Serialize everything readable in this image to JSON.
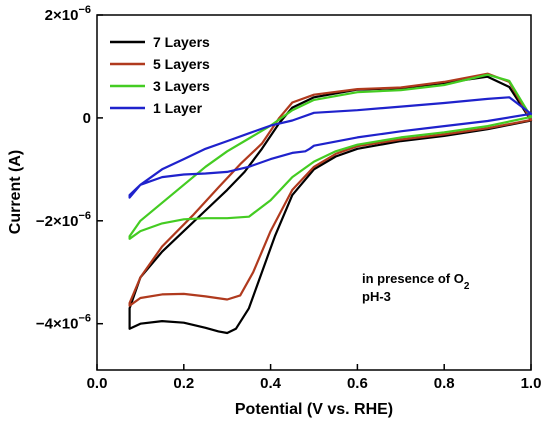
{
  "chart_data": {
    "type": "line",
    "xlabel": "Potential (V vs. RHE)",
    "ylabel": "Current (A)",
    "xlim": [
      0.0,
      1.0
    ],
    "ylim": [
      -4.9e-06,
      2e-06
    ],
    "x_ticks": [
      {
        "value": 0.0,
        "label": "0.0"
      },
      {
        "value": 0.2,
        "label": "0.2"
      },
      {
        "value": 0.4,
        "label": "0.4"
      },
      {
        "value": 0.6,
        "label": "0.6"
      },
      {
        "value": 0.8,
        "label": "0.8"
      },
      {
        "value": 1.0,
        "label": "1.0"
      }
    ],
    "y_ticks": [
      {
        "value": 2e-06,
        "mant": "2×10",
        "exp": "−6"
      },
      {
        "value": 0,
        "mant": "0",
        "exp": ""
      },
      {
        "value": -2e-06,
        "mant": "−2×10",
        "exp": "−6"
      },
      {
        "value": -4e-06,
        "mant": "−4×10",
        "exp": "−6"
      }
    ],
    "legend_position": "top-left",
    "annotation": {
      "line1_main": "in presence of O",
      "line1_sub": "2",
      "line2": "pH-3"
    },
    "series": [
      {
        "name": "7 Layers",
        "color": "#000000",
        "points": [
          [
            0.075,
            -4.1e-06
          ],
          [
            0.1,
            -4e-06
          ],
          [
            0.15,
            -3.95e-06
          ],
          [
            0.2,
            -3.98e-06
          ],
          [
            0.25,
            -4.08e-06
          ],
          [
            0.28,
            -4.15e-06
          ],
          [
            0.3,
            -4.18e-06
          ],
          [
            0.32,
            -4.1e-06
          ],
          [
            0.35,
            -3.7e-06
          ],
          [
            0.38,
            -3e-06
          ],
          [
            0.41,
            -2.3e-06
          ],
          [
            0.45,
            -1.5e-06
          ],
          [
            0.5,
            -1e-06
          ],
          [
            0.55,
            -7.5e-07
          ],
          [
            0.6,
            -6e-07
          ],
          [
            0.7,
            -4.5e-07
          ],
          [
            0.8,
            -3.5e-07
          ],
          [
            0.9,
            -2.2e-07
          ],
          [
            1.0,
            -5e-08
          ],
          [
            0.95,
            6e-07
          ],
          [
            0.9,
            8e-07
          ],
          [
            0.8,
            6.8e-07
          ],
          [
            0.7,
            5.8e-07
          ],
          [
            0.6,
            5.5e-07
          ],
          [
            0.5,
            4e-07
          ],
          [
            0.45,
            2e-07
          ],
          [
            0.42,
            -1e-07
          ],
          [
            0.38,
            -6e-07
          ],
          [
            0.34,
            -1.05e-06
          ],
          [
            0.3,
            -1.4e-06
          ],
          [
            0.25,
            -1.8e-06
          ],
          [
            0.2,
            -2.2e-06
          ],
          [
            0.15,
            -2.6e-06
          ],
          [
            0.1,
            -3.1e-06
          ],
          [
            0.075,
            -3.7e-06
          ]
        ]
      },
      {
        "name": "5 Layers",
        "color": "#b03a1e",
        "points": [
          [
            0.075,
            -3.65e-06
          ],
          [
            0.1,
            -3.5e-06
          ],
          [
            0.15,
            -3.43e-06
          ],
          [
            0.2,
            -3.42e-06
          ],
          [
            0.25,
            -3.47e-06
          ],
          [
            0.3,
            -3.53e-06
          ],
          [
            0.33,
            -3.45e-06
          ],
          [
            0.36,
            -3e-06
          ],
          [
            0.4,
            -2.2e-06
          ],
          [
            0.45,
            -1.4e-06
          ],
          [
            0.5,
            -9.5e-07
          ],
          [
            0.55,
            -7e-07
          ],
          [
            0.6,
            -5.5e-07
          ],
          [
            0.7,
            -4.2e-07
          ],
          [
            0.8,
            -3.2e-07
          ],
          [
            0.9,
            -2e-07
          ],
          [
            1.0,
            -4e-08
          ],
          [
            0.95,
            7e-07
          ],
          [
            0.9,
            8.6e-07
          ],
          [
            0.8,
            7e-07
          ],
          [
            0.7,
            5.9e-07
          ],
          [
            0.6,
            5.6e-07
          ],
          [
            0.5,
            4.5e-07
          ],
          [
            0.45,
            3e-07
          ],
          [
            0.42,
            0.0
          ],
          [
            0.38,
            -5e-07
          ],
          [
            0.33,
            -9e-07
          ],
          [
            0.28,
            -1.35e-06
          ],
          [
            0.22,
            -1.9e-06
          ],
          [
            0.15,
            -2.5e-06
          ],
          [
            0.1,
            -3.1e-06
          ],
          [
            0.075,
            -3.6e-06
          ]
        ]
      },
      {
        "name": "3 Layers",
        "color": "#44cc22",
        "points": [
          [
            0.075,
            -2.35e-06
          ],
          [
            0.1,
            -2.2e-06
          ],
          [
            0.15,
            -2.05e-06
          ],
          [
            0.2,
            -1.97e-06
          ],
          [
            0.25,
            -1.95e-06
          ],
          [
            0.3,
            -1.95e-06
          ],
          [
            0.35,
            -1.92e-06
          ],
          [
            0.4,
            -1.6e-06
          ],
          [
            0.45,
            -1.15e-06
          ],
          [
            0.5,
            -8.5e-07
          ],
          [
            0.55,
            -6.5e-07
          ],
          [
            0.6,
            -5.2e-07
          ],
          [
            0.7,
            -3.8e-07
          ],
          [
            0.8,
            -2.8e-07
          ],
          [
            0.9,
            -1.6e-07
          ],
          [
            1.0,
            2e-08
          ],
          [
            0.95,
            7.2e-07
          ],
          [
            0.9,
            8.4e-07
          ],
          [
            0.8,
            6.4e-07
          ],
          [
            0.7,
            5.4e-07
          ],
          [
            0.6,
            5e-07
          ],
          [
            0.5,
            3.5e-07
          ],
          [
            0.45,
            1.5e-07
          ],
          [
            0.4,
            -1.5e-07
          ],
          [
            0.35,
            -4e-07
          ],
          [
            0.3,
            -6.5e-07
          ],
          [
            0.25,
            -9.5e-07
          ],
          [
            0.2,
            -1.3e-06
          ],
          [
            0.15,
            -1.65e-06
          ],
          [
            0.1,
            -2e-06
          ],
          [
            0.075,
            -2.3e-06
          ]
        ]
      },
      {
        "name": "1 Layer",
        "color": "#1f22cc",
        "points": [
          [
            0.075,
            -1.55e-06
          ],
          [
            0.1,
            -1.3e-06
          ],
          [
            0.15,
            -1.15e-06
          ],
          [
            0.2,
            -1.1e-06
          ],
          [
            0.25,
            -1.08e-06
          ],
          [
            0.3,
            -1.05e-06
          ],
          [
            0.35,
            -9.5e-07
          ],
          [
            0.4,
            -8e-07
          ],
          [
            0.45,
            -6.8e-07
          ],
          [
            0.48,
            -6.5e-07
          ],
          [
            0.49,
            -6e-07
          ],
          [
            0.5,
            -5.4e-07
          ],
          [
            0.55,
            -4.6e-07
          ],
          [
            0.6,
            -3.8e-07
          ],
          [
            0.7,
            -2.6e-07
          ],
          [
            0.8,
            -1.6e-07
          ],
          [
            0.9,
            -6e-08
          ],
          [
            1.0,
            8e-08
          ],
          [
            0.95,
            4e-07
          ],
          [
            0.9,
            3.7e-07
          ],
          [
            0.8,
            2.9e-07
          ],
          [
            0.7,
            2.2e-07
          ],
          [
            0.6,
            1.5e-07
          ],
          [
            0.5,
            1e-07
          ],
          [
            0.45,
            -5e-08
          ],
          [
            0.4,
            -1.5e-07
          ],
          [
            0.35,
            -3e-07
          ],
          [
            0.3,
            -4.5e-07
          ],
          [
            0.25,
            -6e-07
          ],
          [
            0.2,
            -8e-07
          ],
          [
            0.15,
            -1e-06
          ],
          [
            0.1,
            -1.3e-06
          ],
          [
            0.075,
            -1.5e-06
          ]
        ]
      }
    ]
  }
}
